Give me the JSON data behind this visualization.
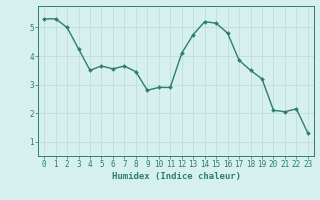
{
  "x": [
    0,
    1,
    2,
    3,
    4,
    5,
    6,
    7,
    8,
    9,
    10,
    11,
    12,
    13,
    14,
    15,
    16,
    17,
    18,
    19,
    20,
    21,
    22,
    23
  ],
  "y": [
    5.3,
    5.3,
    5.0,
    4.25,
    3.5,
    3.65,
    3.55,
    3.65,
    3.45,
    2.8,
    2.9,
    2.9,
    4.1,
    4.75,
    5.2,
    5.15,
    4.8,
    3.85,
    3.5,
    3.2,
    2.1,
    2.05,
    2.15,
    1.3
  ],
  "line_color": "#2e7d6e",
  "marker": "D",
  "marker_size": 2.0,
  "linewidth": 1.0,
  "background_color": "#d6f0ef",
  "grid_color": "#c0dedd",
  "axis_color": "#2e7d6e",
  "xlabel": "Humidex (Indice chaleur)",
  "xlim": [
    -0.5,
    23.5
  ],
  "ylim": [
    0.5,
    5.75
  ],
  "yticks": [
    1,
    2,
    3,
    4,
    5
  ],
  "xticks": [
    0,
    1,
    2,
    3,
    4,
    5,
    6,
    7,
    8,
    9,
    10,
    11,
    12,
    13,
    14,
    15,
    16,
    17,
    18,
    19,
    20,
    21,
    22,
    23
  ],
  "xlabel_fontsize": 6.5,
  "tick_fontsize": 5.5
}
